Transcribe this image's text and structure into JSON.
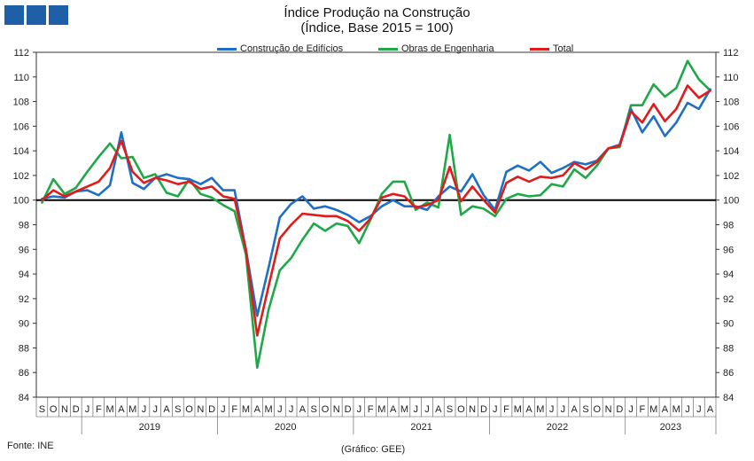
{
  "header": {
    "title": "Índice Produção na Construção",
    "subtitle": "(Índice, Base 2015 = 100)"
  },
  "footer": {
    "source": "Fonte: INE",
    "credit": "(Gráfico: GEE)"
  },
  "colors": {
    "edificios": "#1f6fc4",
    "engenharia": "#1fa847",
    "total": "#e01b1b",
    "baseline": "#000000",
    "logo": "#1f5fa8"
  },
  "chart_data": {
    "type": "line",
    "title": "Índice Produção na Construção",
    "subtitle": "(Índice, Base 2015 = 100)",
    "ylim": [
      84,
      112
    ],
    "yticks": [
      84,
      86,
      88,
      90,
      92,
      94,
      96,
      98,
      100,
      102,
      104,
      106,
      108,
      110,
      112
    ],
    "secondary_axis": true,
    "baseline": 100,
    "legend_position": "top",
    "month_labels": [
      "S",
      "O",
      "N",
      "D",
      "J",
      "F",
      "M",
      "A",
      "M",
      "J",
      "J",
      "A",
      "S",
      "O",
      "N",
      "D",
      "J",
      "F",
      "M",
      "A",
      "M",
      "J",
      "J",
      "A",
      "S",
      "O",
      "N",
      "D",
      "J",
      "F",
      "M",
      "A",
      "M",
      "J",
      "J",
      "A",
      "S",
      "O",
      "N",
      "D",
      "J",
      "F",
      "M",
      "A",
      "M",
      "J",
      "J",
      "A",
      "S",
      "O",
      "N",
      "D",
      "J",
      "F",
      "M",
      "A",
      "M",
      "J",
      "J",
      "A"
    ],
    "years": [
      {
        "label": "2019",
        "start": 4,
        "end": 15
      },
      {
        "label": "2020",
        "start": 16,
        "end": 27
      },
      {
        "label": "2021",
        "start": 28,
        "end": 39
      },
      {
        "label": "2022",
        "start": 40,
        "end": 51
      },
      {
        "label": "2023",
        "start": 52,
        "end": 59
      }
    ],
    "series": [
      {
        "name": "Construção de Edifícios",
        "color": "#1f6fc4",
        "values": [
          100.1,
          100.3,
          100.2,
          100.7,
          100.8,
          100.4,
          101.2,
          105.5,
          101.4,
          100.9,
          101.8,
          102.1,
          101.8,
          101.7,
          101.3,
          101.8,
          100.8,
          100.8,
          96.0,
          90.6,
          94.5,
          98.6,
          99.7,
          100.3,
          99.3,
          99.5,
          99.2,
          98.8,
          98.2,
          98.7,
          99.5,
          100.0,
          99.5,
          99.5,
          99.2,
          100.3,
          101.1,
          100.7,
          102.1,
          100.4,
          99.2,
          102.3,
          102.8,
          102.4,
          103.1,
          102.2,
          102.6,
          103.1,
          102.9,
          103.2,
          104.2,
          104.5,
          107.4,
          105.5,
          106.8,
          105.2,
          106.3,
          107.9,
          107.4,
          109.0
        ]
      },
      {
        "name": "Obras de Engenharia",
        "color": "#1fa847",
        "values": [
          99.8,
          101.7,
          100.5,
          101.0,
          102.3,
          103.5,
          104.6,
          103.4,
          103.5,
          101.8,
          102.1,
          100.6,
          100.3,
          101.7,
          100.5,
          100.2,
          99.6,
          99.1,
          95.6,
          86.4,
          91.1,
          94.3,
          95.3,
          96.8,
          98.1,
          97.5,
          98.1,
          97.9,
          96.5,
          98.4,
          100.5,
          101.5,
          101.5,
          99.2,
          99.8,
          99.4,
          105.3,
          98.8,
          99.5,
          99.3,
          98.7,
          100.1,
          100.5,
          100.3,
          100.4,
          101.3,
          101.1,
          102.5,
          101.8,
          102.8,
          104.2,
          104.3,
          107.7,
          107.7,
          109.4,
          108.4,
          109.1,
          111.3,
          109.8,
          108.9
        ]
      },
      {
        "name": "Total",
        "color": "#e01b1b",
        "values": [
          100.0,
          100.8,
          100.3,
          100.7,
          101.1,
          101.5,
          102.6,
          104.8,
          102.3,
          101.4,
          101.8,
          101.6,
          101.3,
          101.5,
          100.9,
          101.1,
          100.3,
          100.1,
          96.0,
          89.0,
          93.0,
          96.9,
          98.0,
          98.9,
          98.8,
          98.7,
          98.7,
          98.3,
          97.5,
          98.5,
          100.2,
          100.5,
          100.3,
          99.4,
          99.6,
          100.0,
          102.7,
          99.9,
          101.1,
          100.0,
          99.0,
          101.4,
          101.9,
          101.5,
          101.9,
          101.8,
          102.0,
          103.0,
          102.5,
          103.1,
          104.2,
          104.4,
          107.2,
          106.3,
          107.8,
          106.4,
          107.4,
          109.3,
          108.3,
          108.9
        ]
      }
    ]
  }
}
